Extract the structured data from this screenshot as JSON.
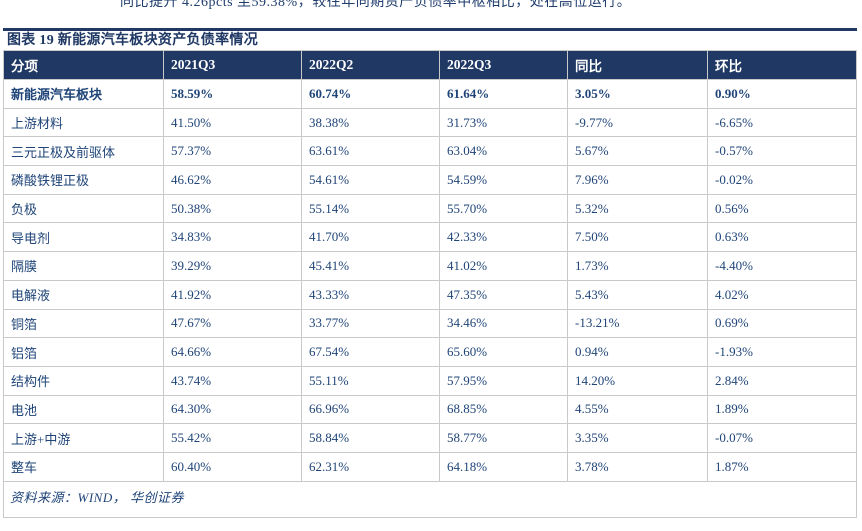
{
  "page": {
    "clipped_paragraph": "同比提升 4.26pcts 至59.38%，较往年同期资产负债率中枢相比，处在高位运行。"
  },
  "figure": {
    "title": "图表 19  新能源汽车板块资产负债率情况",
    "source": "资料来源：WIND， 华创证券"
  },
  "chart_data": {
    "type": "table",
    "title": "新能源汽车板块资产负债率情况",
    "columns": [
      "分项",
      "2021Q3",
      "2022Q2",
      "2022Q3",
      "同比",
      "环比"
    ],
    "rows": [
      {
        "label": "新能源汽车板块",
        "bold": true,
        "values": [
          "58.59%",
          "60.74%",
          "61.64%",
          "3.05%",
          "0.90%"
        ]
      },
      {
        "label": "上游材料",
        "bold": false,
        "values": [
          "41.50%",
          "38.38%",
          "31.73%",
          "-9.77%",
          "-6.65%"
        ]
      },
      {
        "label": "三元正极及前驱体",
        "bold": false,
        "values": [
          "57.37%",
          "63.61%",
          "63.04%",
          "5.67%",
          "-0.57%"
        ]
      },
      {
        "label": "磷酸铁锂正极",
        "bold": false,
        "values": [
          "46.62%",
          "54.61%",
          "54.59%",
          "7.96%",
          "-0.02%"
        ]
      },
      {
        "label": "负极",
        "bold": false,
        "values": [
          "50.38%",
          "55.14%",
          "55.70%",
          "5.32%",
          "0.56%"
        ]
      },
      {
        "label": "导电剂",
        "bold": false,
        "values": [
          "34.83%",
          "41.70%",
          "42.33%",
          "7.50%",
          "0.63%"
        ]
      },
      {
        "label": "隔膜",
        "bold": false,
        "values": [
          "39.29%",
          "45.41%",
          "41.02%",
          "1.73%",
          "-4.40%"
        ]
      },
      {
        "label": "电解液",
        "bold": false,
        "values": [
          "41.92%",
          "43.33%",
          "47.35%",
          "5.43%",
          "4.02%"
        ]
      },
      {
        "label": "铜箔",
        "bold": false,
        "values": [
          "47.67%",
          "33.77%",
          "34.46%",
          "-13.21%",
          "0.69%"
        ]
      },
      {
        "label": "铝箔",
        "bold": false,
        "values": [
          "64.66%",
          "67.54%",
          "65.60%",
          "0.94%",
          "-1.93%"
        ]
      },
      {
        "label": "结构件",
        "bold": false,
        "values": [
          "43.74%",
          "55.11%",
          "57.95%",
          "14.20%",
          "2.84%"
        ]
      },
      {
        "label": "电池",
        "bold": false,
        "values": [
          "64.30%",
          "66.96%",
          "68.85%",
          "4.55%",
          "1.89%"
        ]
      },
      {
        "label": "上游+中游",
        "bold": false,
        "values": [
          "55.42%",
          "58.84%",
          "58.77%",
          "3.35%",
          "-0.07%"
        ]
      },
      {
        "label": "整车",
        "bold": false,
        "values": [
          "60.40%",
          "62.31%",
          "64.18%",
          "3.78%",
          "1.87%"
        ]
      }
    ]
  },
  "colors": {
    "navy": "#1F3864",
    "text_navy": "#1F4478",
    "border_gray": "#C9C9C9",
    "background": "#FFFFFF"
  }
}
